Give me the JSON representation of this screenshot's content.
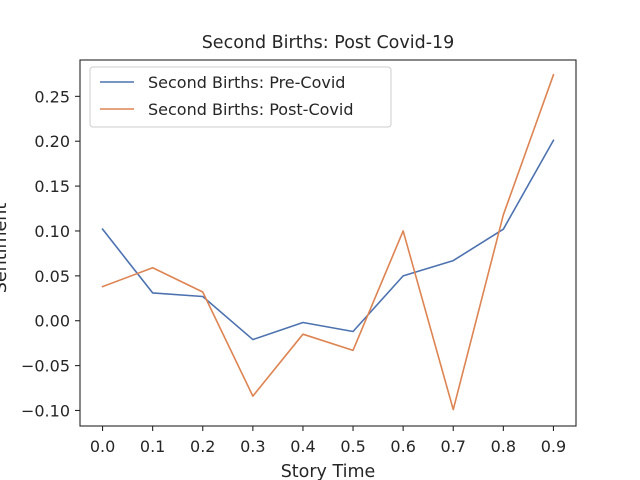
{
  "chart_data": {
    "type": "line",
    "title": "Second Births: Post Covid-19",
    "xlabel": "Story Time",
    "ylabel": "Sentiment",
    "x": [
      0.0,
      0.1,
      0.2,
      0.3,
      0.4,
      0.5,
      0.6,
      0.7,
      0.8,
      0.9
    ],
    "x_tick_labels": [
      "0.0",
      "0.1",
      "0.2",
      "0.3",
      "0.4",
      "0.5",
      "0.6",
      "0.7",
      "0.8",
      "0.9"
    ],
    "y_ticks": [
      -0.1,
      -0.05,
      0.0,
      0.05,
      0.1,
      0.15,
      0.2,
      0.25
    ],
    "y_tick_labels": [
      "−0.10",
      "−0.05",
      "0.00",
      "0.05",
      "0.10",
      "0.15",
      "0.20",
      "0.25"
    ],
    "xlim": [
      -0.045,
      0.945
    ],
    "ylim": [
      -0.1173,
      0.2905
    ],
    "grid": false,
    "legend_position": "top-left",
    "series": [
      {
        "name": "Second Births: Pre-Covid",
        "color": "#4c72b0",
        "values": [
          0.102,
          0.031,
          0.027,
          -0.021,
          -0.002,
          -0.012,
          0.05,
          0.067,
          0.102,
          0.201
        ]
      },
      {
        "name": "Second Births: Post-Covid",
        "color": "#dd8452",
        "values": [
          0.038,
          0.059,
          0.032,
          -0.084,
          -0.015,
          -0.033,
          0.1,
          -0.099,
          0.118,
          0.274
        ]
      }
    ]
  }
}
